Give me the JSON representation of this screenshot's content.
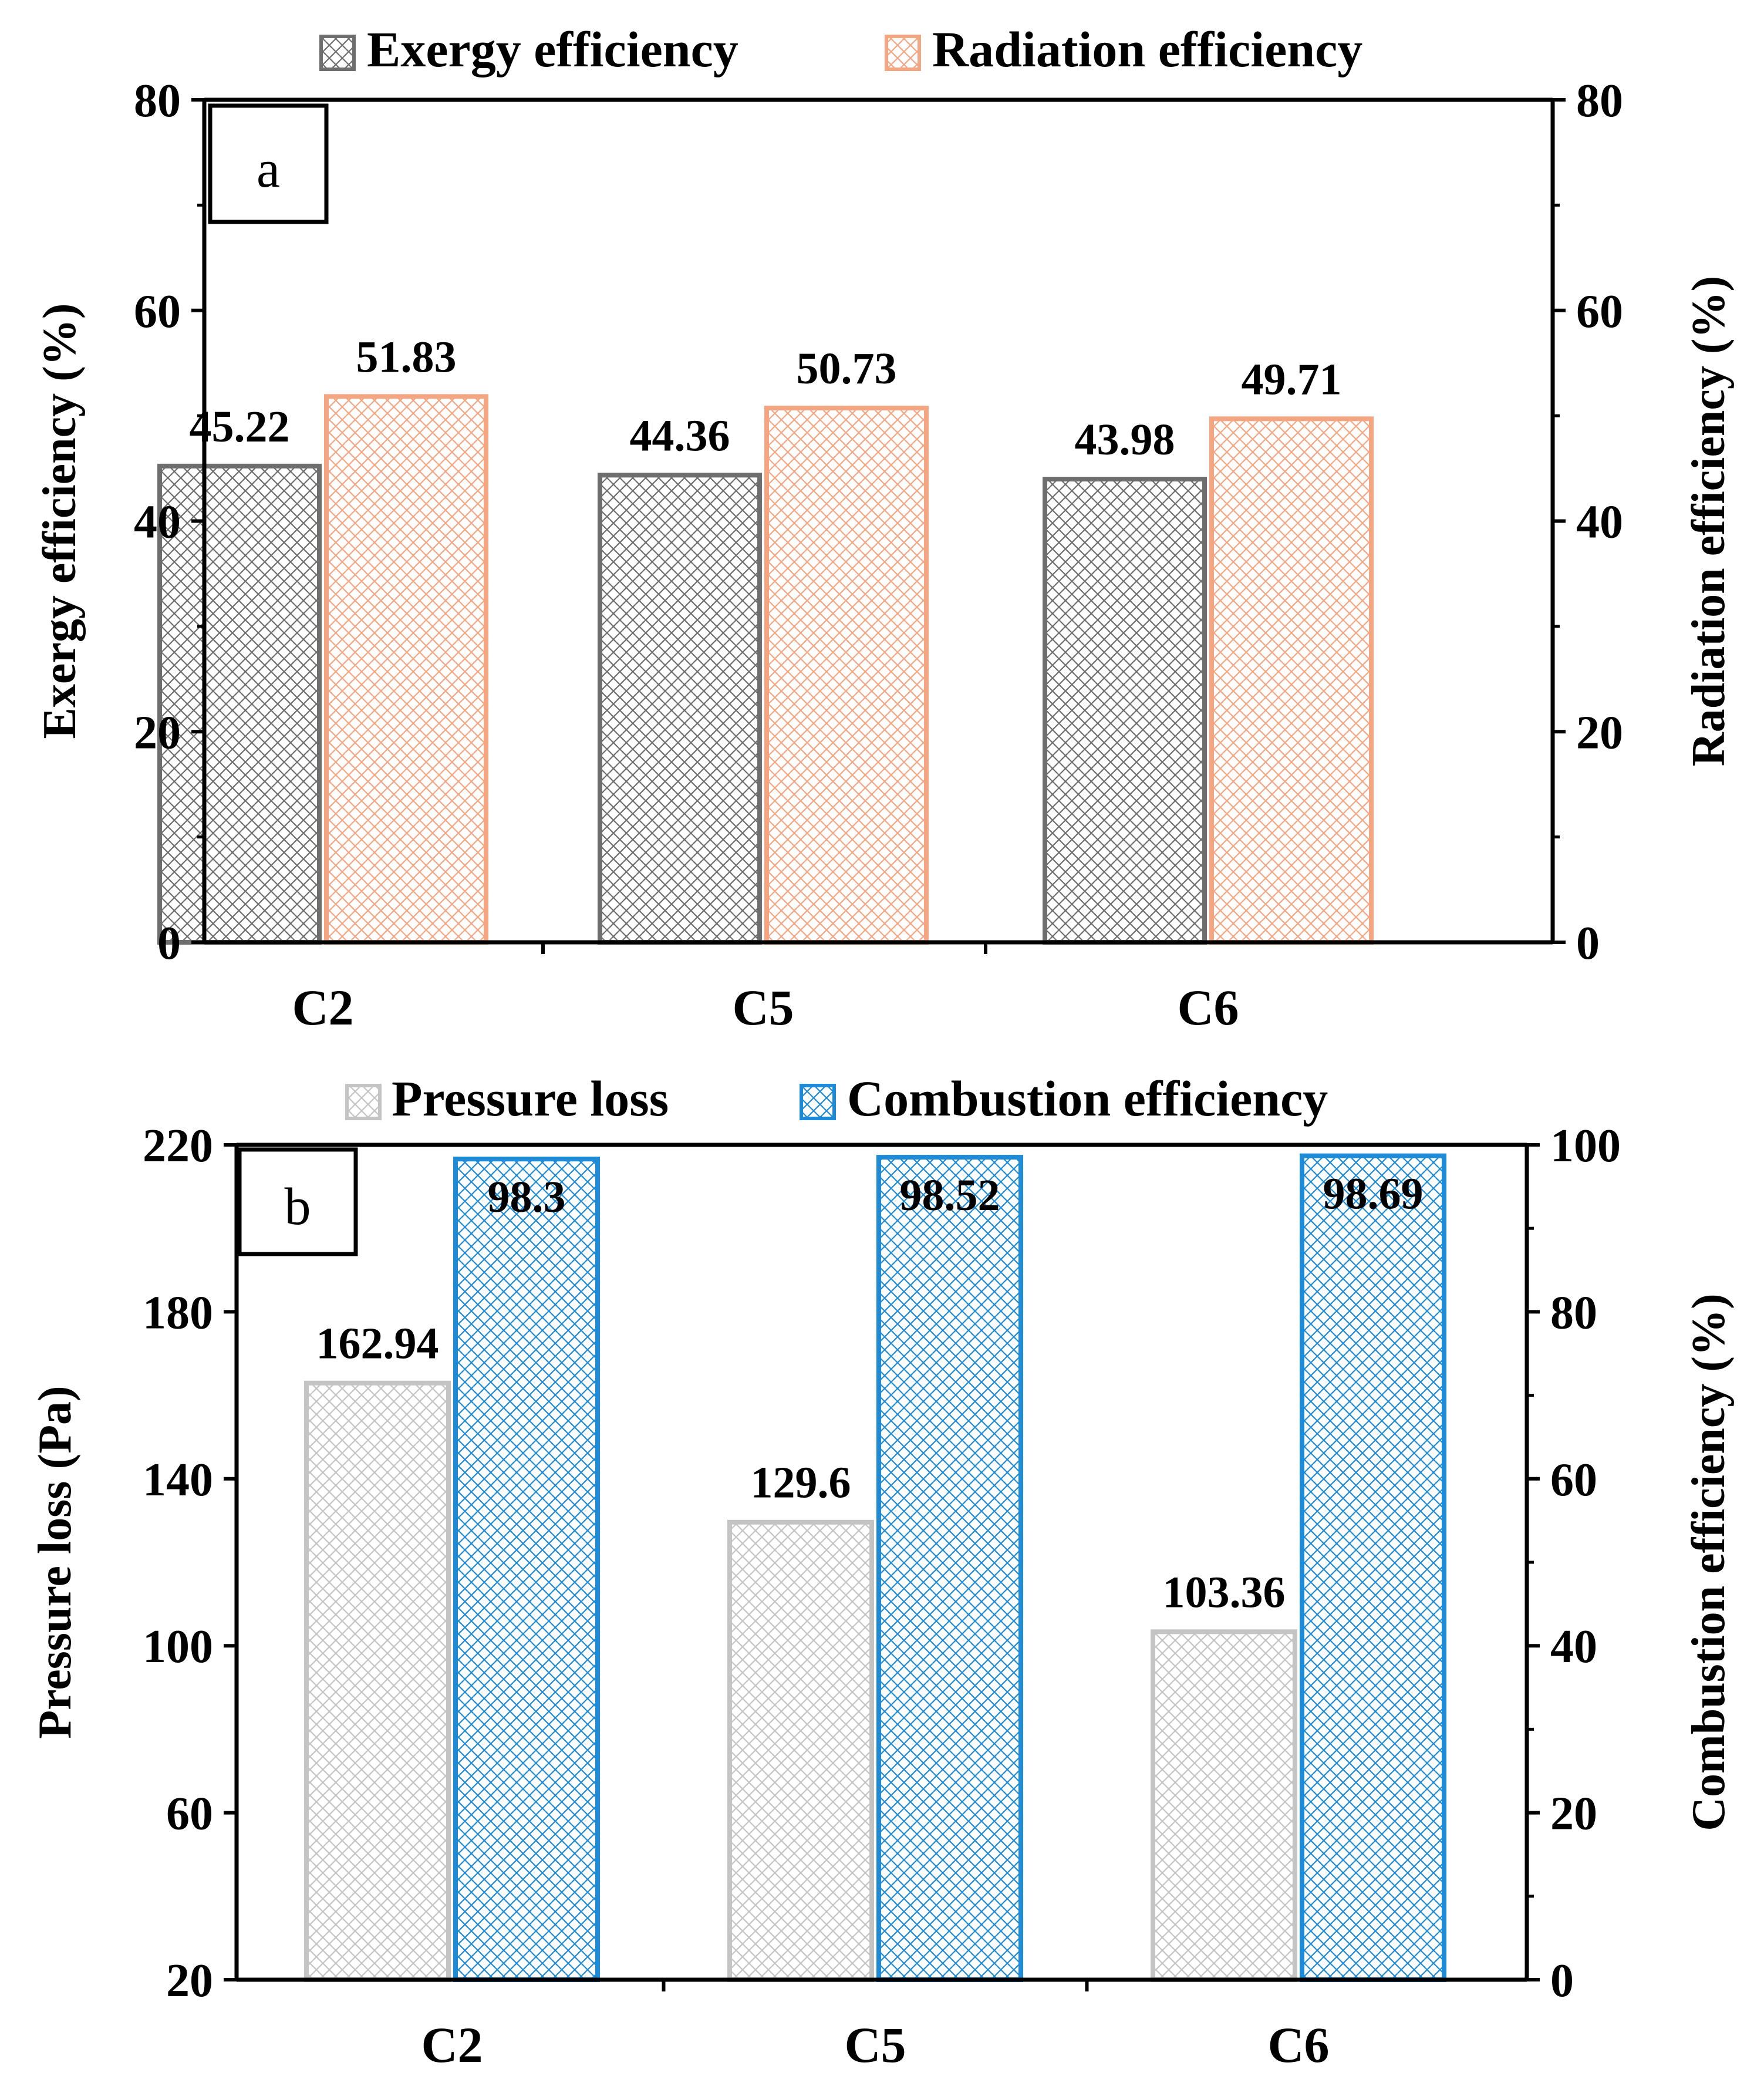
{
  "colors": {
    "exergy": "#6e6e6e",
    "radiation": "#f4a582",
    "pressure": "#c4c4c4",
    "combustion": "#1f8ad6",
    "axis": "#000000"
  },
  "chart_data": [
    {
      "type": "bar",
      "panel_label": "a",
      "categories": [
        "C2",
        "C5",
        "C6"
      ],
      "series": [
        {
          "name": "Exergy efficiency",
          "axis": "left",
          "values": [
            45.22,
            44.36,
            43.98
          ],
          "value_labels": [
            "45.22",
            "44.36",
            "43.98"
          ],
          "color_key": "exergy"
        },
        {
          "name": "Radiation efficiency",
          "axis": "right",
          "values": [
            51.83,
            50.73,
            49.71
          ],
          "value_labels": [
            "51.83",
            "50.73",
            "49.71"
          ],
          "color_key": "radiation"
        }
      ],
      "ylabel_left": "Exergy efficiency (%)",
      "ylabel_right": "Radiation efficiency (%)",
      "ylim_left": [
        0,
        80
      ],
      "ylim_right": [
        0,
        80
      ],
      "yticks_left": [
        0,
        20,
        40,
        60,
        80
      ],
      "yticks_right": [
        0,
        20,
        40,
        60,
        80
      ],
      "grid": false,
      "legend": "top-center"
    },
    {
      "type": "bar",
      "panel_label": "b",
      "categories": [
        "C2",
        "C5",
        "C6"
      ],
      "series": [
        {
          "name": "Pressure loss",
          "axis": "left",
          "values": [
            162.94,
            129.6,
            103.36
          ],
          "value_labels": [
            "162.94",
            "129.6",
            "103.36"
          ],
          "color_key": "pressure"
        },
        {
          "name": "Combustion efficiency",
          "axis": "right",
          "values": [
            98.3,
            98.52,
            98.69
          ],
          "value_labels": [
            "98.3",
            "98.52",
            "98.69"
          ],
          "color_key": "combustion"
        }
      ],
      "ylabel_left": "Pressure loss (Pa)",
      "ylabel_right": "Combustion efficiency (%)",
      "ylim_left": [
        20,
        220
      ],
      "ylim_right": [
        0,
        100
      ],
      "yticks_left": [
        20,
        60,
        100,
        140,
        180,
        220
      ],
      "yticks_right": [
        0,
        20,
        40,
        60,
        80,
        100
      ],
      "grid": false,
      "legend": "top-center"
    }
  ]
}
